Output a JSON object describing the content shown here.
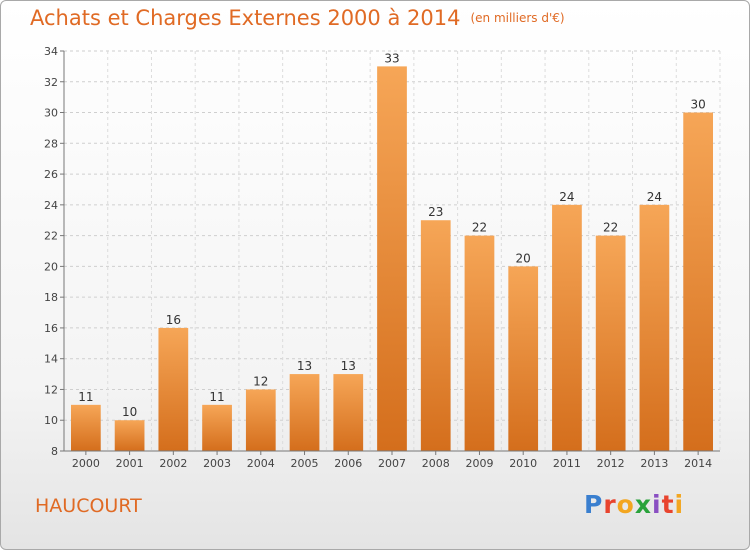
{
  "header": {
    "title": "Achats et Charges Externes 2000 à 2014",
    "unit": "(en milliers d'€)"
  },
  "footer": {
    "place": "HAUCOURT",
    "logo": [
      "P",
      "r",
      "o",
      "x",
      "i",
      "t",
      "i"
    ]
  },
  "colors": {
    "title": "#e06a24",
    "bar_light": "#f6a657",
    "bar_dark": "#d46e1c",
    "logo": [
      "#3a7fcf",
      "#e8442e",
      "#f3a620",
      "#2aa33b",
      "#8a4fc2",
      "#e8442e",
      "#f3a620"
    ]
  },
  "chart_data": {
    "type": "bar",
    "categories": [
      "2000",
      "2001",
      "2002",
      "2003",
      "2004",
      "2005",
      "2006",
      "2007",
      "2008",
      "2009",
      "2010",
      "2011",
      "2012",
      "2013",
      "2014"
    ],
    "values": [
      11,
      10,
      16,
      11,
      12,
      13,
      13,
      33,
      23,
      22,
      20,
      24,
      22,
      24,
      30
    ],
    "title": "Achats et Charges Externes 2000 à 2014",
    "xlabel": "",
    "ylabel": "",
    "ylim": [
      8,
      34
    ],
    "yticks": [
      8,
      10,
      12,
      14,
      16,
      18,
      20,
      22,
      24,
      26,
      28,
      30,
      32,
      34
    ],
    "grid": true,
    "legend": "none"
  }
}
